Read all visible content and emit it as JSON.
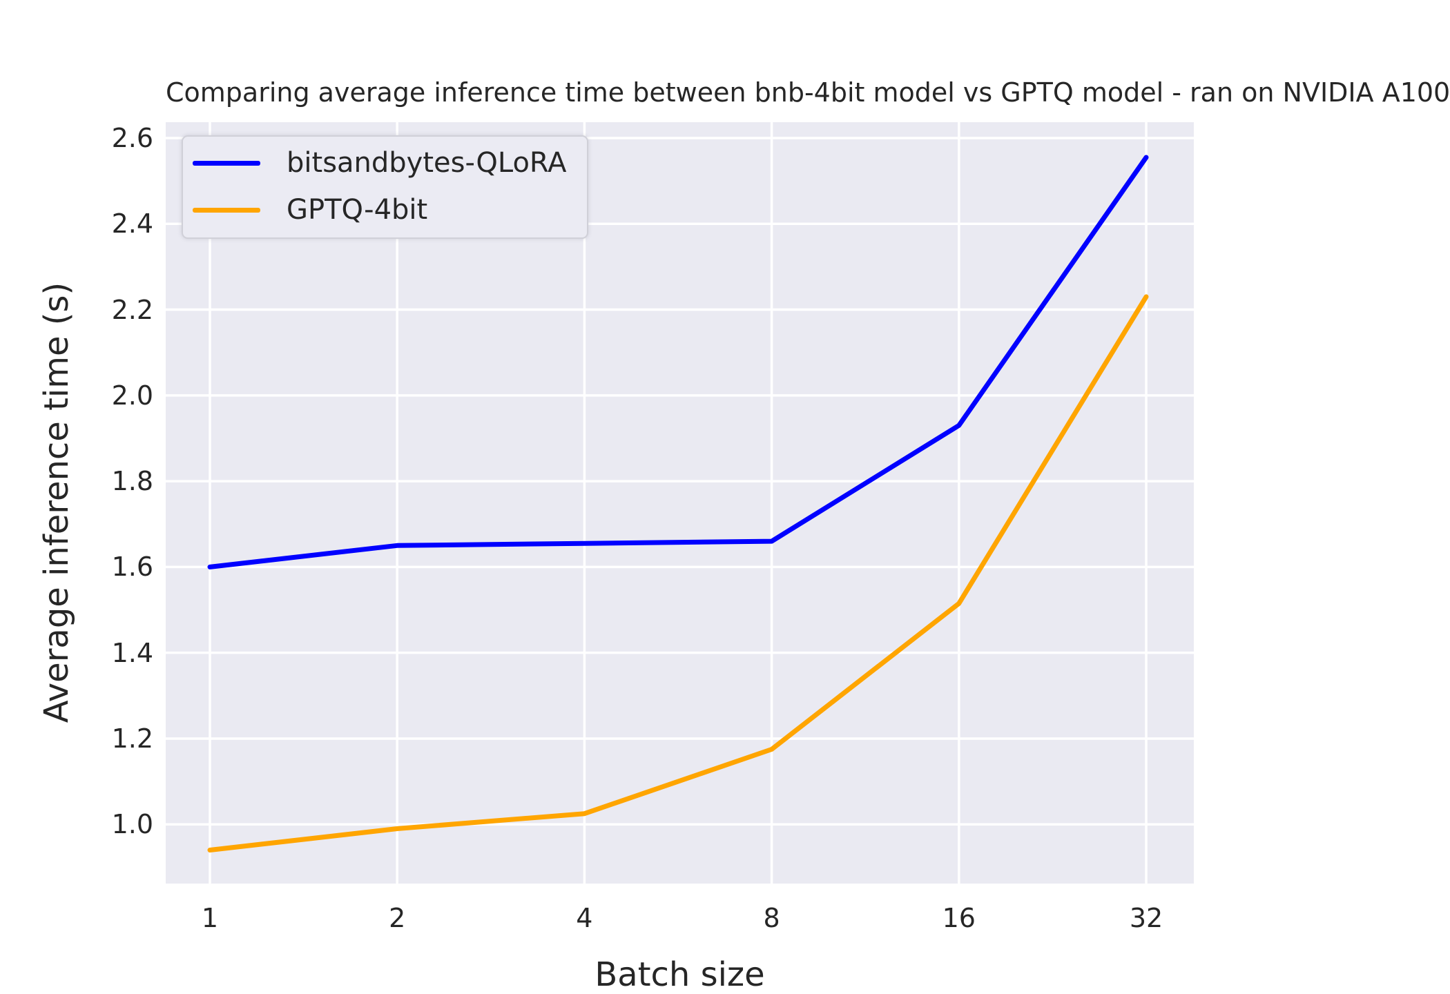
{
  "title": "Comparing average inference time between bnb-4bit model vs GPTQ model - ran on NVIDIA A100",
  "chart_data": {
    "type": "line",
    "title": "Comparing average inference time between bnb-4bit model vs GPTQ model - ran on NVIDIA A100",
    "xlabel": "Batch size",
    "ylabel": "Average inference time (s)",
    "categories": [
      "1",
      "2",
      "4",
      "8",
      "16",
      "32"
    ],
    "x_scale": "log2-categorical",
    "y_ticks": [
      1.0,
      1.2,
      1.4,
      1.6,
      1.8,
      2.0,
      2.2,
      2.4,
      2.6
    ],
    "ylim": [
      0.862,
      2.637
    ],
    "grid": true,
    "legend_position": "upper-left",
    "series": [
      {
        "name": "bitsandbytes-QLoRA",
        "color": "#0000ff",
        "values": [
          1.6,
          1.65,
          1.655,
          1.66,
          1.93,
          2.555
        ]
      },
      {
        "name": "GPTQ-4bit",
        "color": "#ffa500",
        "values": [
          0.94,
          0.99,
          1.025,
          1.175,
          1.515,
          2.23
        ]
      }
    ],
    "colors": {
      "plot_background": "#eaeaf2",
      "gridline": "#ffffff",
      "text": "#262626",
      "figure_background": "#ffffff"
    }
  }
}
